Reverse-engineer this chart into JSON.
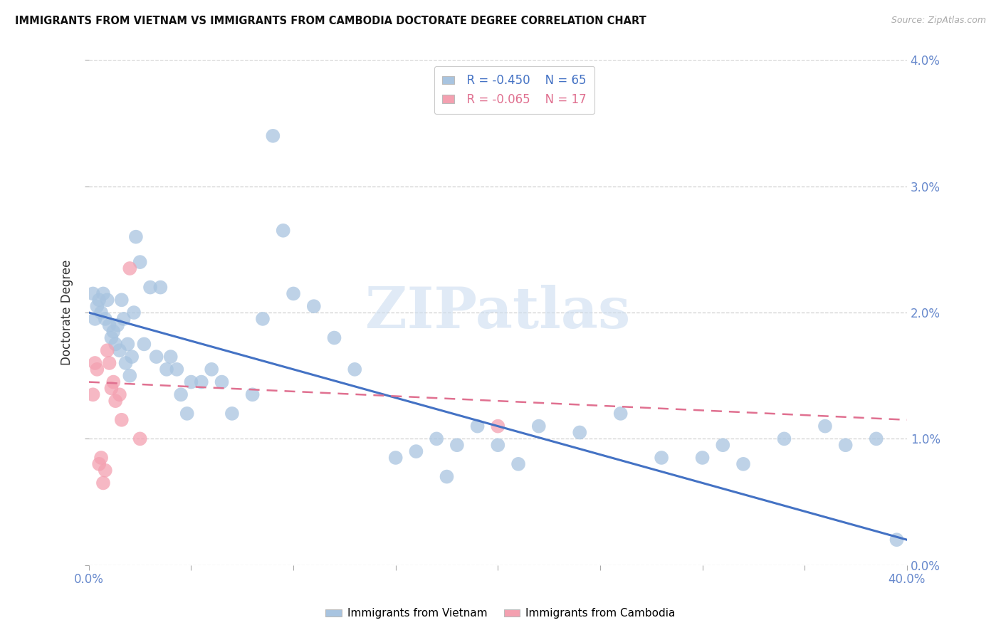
{
  "title": "IMMIGRANTS FROM VIETNAM VS IMMIGRANTS FROM CAMBODIA DOCTORATE DEGREE CORRELATION CHART",
  "source": "Source: ZipAtlas.com",
  "ylabel": "Doctorate Degree",
  "legend_bottom": [
    "Immigrants from Vietnam",
    "Immigrants from Cambodia"
  ],
  "legend_r_vietnam": "R = -0.450",
  "legend_n_vietnam": "N = 65",
  "legend_r_cambodia": "R = -0.065",
  "legend_n_cambodia": "N = 17",
  "xlim": [
    0.0,
    0.4
  ],
  "ylim": [
    0.0,
    0.04
  ],
  "xtick_positions": [
    0.0,
    0.05,
    0.1,
    0.15,
    0.2,
    0.25,
    0.3,
    0.35,
    0.4
  ],
  "xtick_labels_show": {
    "0.0": "0.0%",
    "0.40": "40.0%"
  },
  "ytick_positions": [
    0.0,
    0.01,
    0.02,
    0.03,
    0.04
  ],
  "ytick_labels": [
    "0.0%",
    "1.0%",
    "2.0%",
    "3.0%",
    "4.0%"
  ],
  "color_vietnam": "#a8c4e0",
  "color_cambodia": "#f4a0b0",
  "color_vietnam_line": "#4472c4",
  "color_cambodia_line": "#e07090",
  "tick_color": "#6688cc",
  "background": "#ffffff",
  "watermark": "ZIPatlas",
  "vietnam_x": [
    0.002,
    0.003,
    0.004,
    0.005,
    0.006,
    0.007,
    0.008,
    0.009,
    0.01,
    0.011,
    0.012,
    0.013,
    0.014,
    0.015,
    0.016,
    0.017,
    0.018,
    0.019,
    0.02,
    0.021,
    0.022,
    0.023,
    0.025,
    0.027,
    0.03,
    0.033,
    0.035,
    0.038,
    0.04,
    0.043,
    0.045,
    0.048,
    0.05,
    0.055,
    0.06,
    0.065,
    0.07,
    0.08,
    0.085,
    0.09,
    0.095,
    0.1,
    0.11,
    0.12,
    0.13,
    0.15,
    0.16,
    0.17,
    0.175,
    0.18,
    0.19,
    0.2,
    0.21,
    0.22,
    0.24,
    0.26,
    0.28,
    0.3,
    0.31,
    0.32,
    0.34,
    0.36,
    0.37,
    0.385,
    0.395
  ],
  "vietnam_y": [
    0.0215,
    0.0195,
    0.0205,
    0.021,
    0.02,
    0.0215,
    0.0195,
    0.021,
    0.019,
    0.018,
    0.0185,
    0.0175,
    0.019,
    0.017,
    0.021,
    0.0195,
    0.016,
    0.0175,
    0.015,
    0.0165,
    0.02,
    0.026,
    0.024,
    0.0175,
    0.022,
    0.0165,
    0.022,
    0.0155,
    0.0165,
    0.0155,
    0.0135,
    0.012,
    0.0145,
    0.0145,
    0.0155,
    0.0145,
    0.012,
    0.0135,
    0.0195,
    0.034,
    0.0265,
    0.0215,
    0.0205,
    0.018,
    0.0155,
    0.0085,
    0.009,
    0.01,
    0.007,
    0.0095,
    0.011,
    0.0095,
    0.008,
    0.011,
    0.0105,
    0.012,
    0.0085,
    0.0085,
    0.0095,
    0.008,
    0.01,
    0.011,
    0.0095,
    0.01,
    0.002
  ],
  "cambodia_x": [
    0.002,
    0.003,
    0.004,
    0.005,
    0.006,
    0.007,
    0.008,
    0.009,
    0.01,
    0.011,
    0.012,
    0.013,
    0.015,
    0.016,
    0.02,
    0.025,
    0.2
  ],
  "cambodia_y": [
    0.0135,
    0.016,
    0.0155,
    0.008,
    0.0085,
    0.0065,
    0.0075,
    0.017,
    0.016,
    0.014,
    0.0145,
    0.013,
    0.0135,
    0.0115,
    0.0235,
    0.01,
    0.011
  ],
  "viet_line_x0": 0.0,
  "viet_line_y0": 0.02,
  "viet_line_x1": 0.4,
  "viet_line_y1": 0.002,
  "camb_line_x0": 0.0,
  "camb_line_y0": 0.0145,
  "camb_line_x1": 0.4,
  "camb_line_y1": 0.0115
}
